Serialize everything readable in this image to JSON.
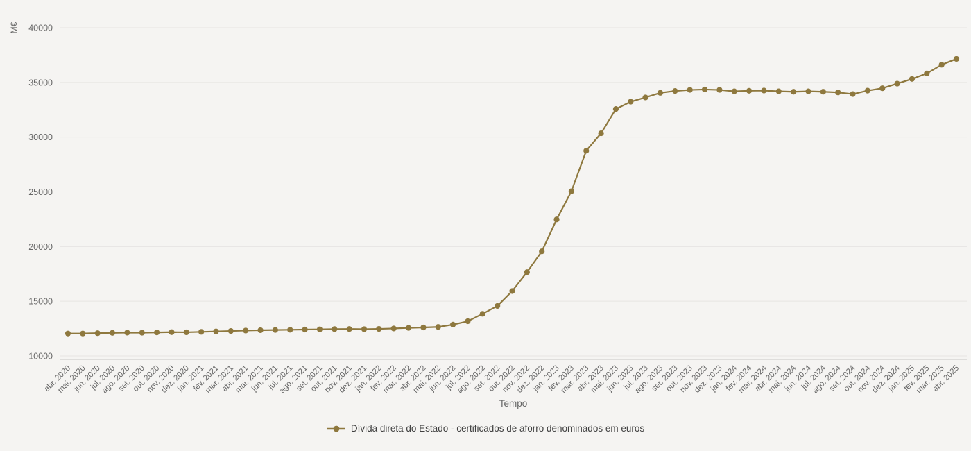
{
  "colors": {
    "background": "#f5f4f2",
    "series_accent": "#8E783E",
    "gridline": "#e6e5e3",
    "axis_line": "#c7c6c4",
    "tick_label": "#666666",
    "legend_text": "#404040"
  },
  "chart_data": {
    "type": "line",
    "title": "",
    "xlabel": "Tempo",
    "ylabel": "M€",
    "grid": "horizontal-only",
    "legend_position": "bottom-center",
    "marker": "circle",
    "ylim": [
      10000,
      40000
    ],
    "yticks": [
      10000,
      15000,
      20000,
      25000,
      30000,
      35000,
      40000
    ],
    "x": [
      "abr. 2020",
      "mai. 2020",
      "jun. 2020",
      "jul. 2020",
      "ago. 2020",
      "set. 2020",
      "out. 2020",
      "nov. 2020",
      "dez. 2020",
      "jan. 2021",
      "fev. 2021",
      "mar. 2021",
      "abr. 2021",
      "mai. 2021",
      "jun. 2021",
      "jul. 2021",
      "ago. 2021",
      "set. 2021",
      "out. 2021",
      "nov. 2021",
      "dez. 2021",
      "jan. 2022",
      "fev. 2022",
      "mar. 2022",
      "abr. 2022",
      "mai. 2022",
      "jun. 2022",
      "jul. 2022",
      "ago. 2022",
      "set. 2022",
      "out. 2022",
      "nov. 2022",
      "dez. 2022",
      "jan. 2023",
      "fev. 2023",
      "mar. 2023",
      "abr. 2023",
      "mai. 2023",
      "jun. 2023",
      "jul. 2023",
      "ago. 2023",
      "set. 2023",
      "out. 2023",
      "nov. 2023",
      "dez. 2023",
      "jan. 2024",
      "fev. 2024",
      "mar. 2024",
      "abr. 2024",
      "mai. 2024",
      "jun. 2024",
      "jul. 2024",
      "ago. 2024",
      "set. 2024",
      "out. 2024",
      "nov. 2024",
      "dez. 2024",
      "jan. 2025",
      "fev. 2025",
      "mar. 2025",
      "abr. 2025"
    ],
    "series": [
      {
        "name": "Dívida direta do Estado - certificados de aforro denominados em euros",
        "color": "#8E783E",
        "values": [
          12050,
          12050,
          12080,
          12110,
          12130,
          12120,
          12150,
          12170,
          12160,
          12200,
          12240,
          12280,
          12320,
          12350,
          12370,
          12390,
          12410,
          12430,
          12450,
          12460,
          12440,
          12470,
          12510,
          12560,
          12600,
          12650,
          12860,
          13170,
          13850,
          14570,
          15930,
          17660,
          19560,
          22480,
          25060,
          28760,
          30350,
          32570,
          33240,
          33630,
          34050,
          34220,
          34320,
          34360,
          34320,
          34190,
          34240,
          34260,
          34190,
          34150,
          34190,
          34150,
          34090,
          33940,
          34250,
          34470,
          34890,
          35320,
          35820,
          36620,
          37150
        ]
      }
    ]
  }
}
